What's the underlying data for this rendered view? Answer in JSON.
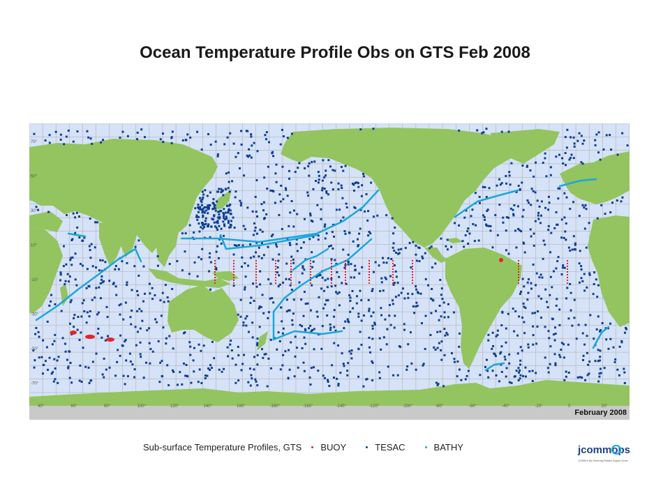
{
  "title": "Ocean Temperature Profile Obs on GTS Feb 2008",
  "map": {
    "date_stamp": "February 2008",
    "lat_ticks": [
      "70°",
      "50°",
      "30°",
      "10°",
      "-10°",
      "-30°",
      "-50°",
      "-70°"
    ],
    "lon_ticks": [
      "40°",
      "60°",
      "80°",
      "100°",
      "120°",
      "140°",
      "160°",
      "-180°",
      "-160°",
      "-140°",
      "-120°",
      "-100°",
      "-80°",
      "-60°",
      "-40°",
      "-20°",
      "0",
      "20°"
    ],
    "colors": {
      "ocean": "#d6e2f7",
      "land": "#93c45f",
      "ice": "#c9c9c9",
      "grid": "#a9a9a9",
      "tesac": "#0b3f93",
      "bathy": "#1aa6dc",
      "buoy": "#e3242b"
    }
  },
  "legend": {
    "caption": "Sub-surface Temperature Profiles, GTS",
    "items": [
      {
        "label": "BUOY",
        "color": "#e3242b"
      },
      {
        "label": "TESAC",
        "color": "#0b3f93"
      },
      {
        "label": "BATHY",
        "color": "#1aa6dc"
      }
    ]
  },
  "logo": {
    "text": "jcommops",
    "subtext": "JCOMM in situ Observing Platform Support Centre"
  }
}
